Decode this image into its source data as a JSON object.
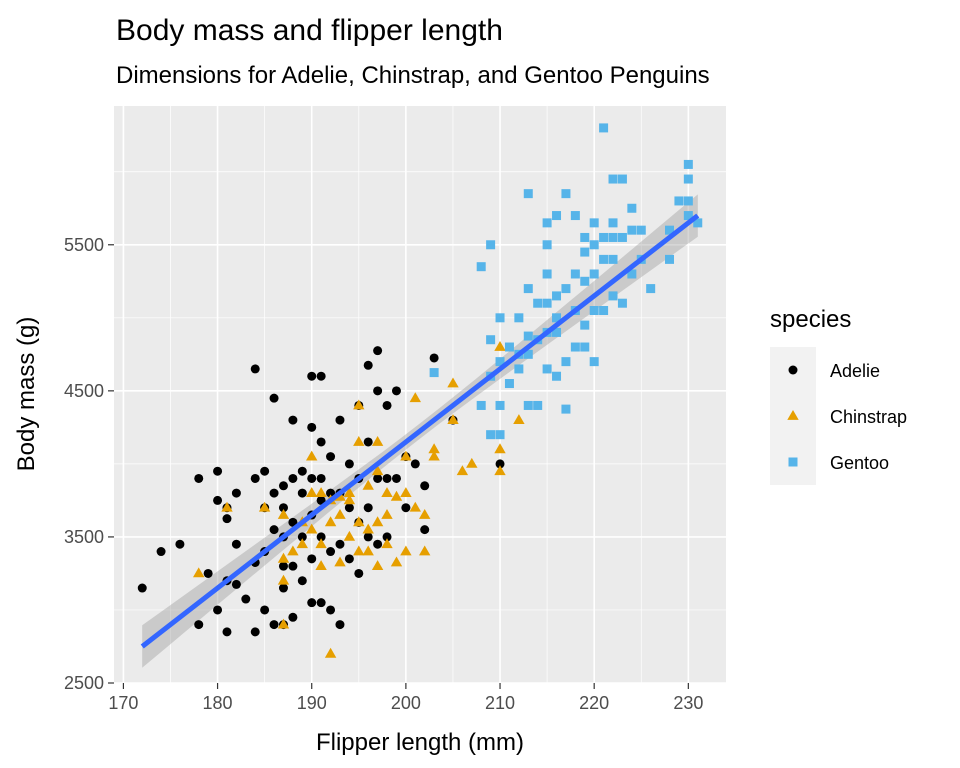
{
  "chart_data": {
    "type": "scatter",
    "title": "Body mass and flipper length",
    "subtitle": "Dimensions for Adelie, Chinstrap, and Gentoo Penguins",
    "xlabel": "Flipper length (mm)",
    "ylabel": "Body mass (g)",
    "xlim": [
      169,
      234
    ],
    "ylim": [
      2500,
      6450
    ],
    "x_ticks": [
      170,
      180,
      190,
      200,
      210,
      220,
      230
    ],
    "y_ticks": [
      2500,
      3500,
      4500,
      5500
    ],
    "grid": true,
    "legend": {
      "title": "species",
      "position": "right"
    },
    "series": [
      {
        "name": "Adelie",
        "color": "#000000",
        "shape": "circle",
        "points": [
          [
            172,
            3150
          ],
          [
            174,
            3400
          ],
          [
            176,
            3450
          ],
          [
            178,
            2900
          ],
          [
            178,
            3900
          ],
          [
            179,
            3250
          ],
          [
            180,
            3000
          ],
          [
            180,
            3950
          ],
          [
            180,
            3750
          ],
          [
            181,
            2850
          ],
          [
            181,
            3200
          ],
          [
            181,
            3625
          ],
          [
            181,
            3700
          ],
          [
            182,
            3175
          ],
          [
            182,
            3450
          ],
          [
            182,
            3800
          ],
          [
            183,
            3075
          ],
          [
            184,
            2850
          ],
          [
            184,
            3325
          ],
          [
            184,
            3900
          ],
          [
            184,
            4650
          ],
          [
            185,
            3000
          ],
          [
            185,
            3400
          ],
          [
            185,
            3700
          ],
          [
            185,
            3950
          ],
          [
            186,
            2900
          ],
          [
            186,
            3550
          ],
          [
            186,
            3800
          ],
          [
            186,
            4450
          ],
          [
            187,
            2900
          ],
          [
            187,
            3150
          ],
          [
            187,
            3300
          ],
          [
            187,
            3500
          ],
          [
            187,
            3700
          ],
          [
            187,
            3850
          ],
          [
            188,
            2950
          ],
          [
            188,
            3300
          ],
          [
            188,
            3600
          ],
          [
            188,
            3900
          ],
          [
            188,
            4300
          ],
          [
            189,
            3200
          ],
          [
            189,
            3500
          ],
          [
            189,
            3800
          ],
          [
            189,
            3950
          ],
          [
            190,
            3050
          ],
          [
            190,
            3350
          ],
          [
            190,
            3650
          ],
          [
            190,
            3900
          ],
          [
            190,
            4250
          ],
          [
            190,
            4600
          ],
          [
            191,
            3050
          ],
          [
            191,
            3500
          ],
          [
            191,
            3750
          ],
          [
            191,
            3900
          ],
          [
            191,
            4150
          ],
          [
            191,
            4600
          ],
          [
            192,
            3000
          ],
          [
            192,
            3400
          ],
          [
            192,
            3800
          ],
          [
            192,
            4050
          ],
          [
            193,
            2900
          ],
          [
            193,
            3450
          ],
          [
            193,
            3800
          ],
          [
            193,
            4300
          ],
          [
            194,
            3350
          ],
          [
            194,
            3700
          ],
          [
            194,
            4000
          ],
          [
            195,
            3250
          ],
          [
            195,
            3600
          ],
          [
            195,
            3900
          ],
          [
            195,
            4400
          ],
          [
            196,
            3500
          ],
          [
            196,
            3700
          ],
          [
            196,
            4150
          ],
          [
            196,
            4675
          ],
          [
            197,
            3450
          ],
          [
            197,
            3900
          ],
          [
            197,
            4500
          ],
          [
            197,
            4775
          ],
          [
            198,
            3500
          ],
          [
            198,
            3900
          ],
          [
            198,
            4400
          ],
          [
            199,
            3900
          ],
          [
            199,
            4500
          ],
          [
            200,
            3700
          ],
          [
            200,
            4050
          ],
          [
            201,
            4000
          ],
          [
            202,
            3550
          ],
          [
            202,
            3850
          ],
          [
            203,
            4725
          ],
          [
            205,
            4300
          ],
          [
            210,
            4000
          ]
        ]
      },
      {
        "name": "Chinstrap",
        "color": "#e69f00",
        "shape": "triangle",
        "points": [
          [
            178,
            3250
          ],
          [
            181,
            3700
          ],
          [
            185,
            3700
          ],
          [
            187,
            2900
          ],
          [
            187,
            3200
          ],
          [
            187,
            3350
          ],
          [
            187,
            3650
          ],
          [
            188,
            3400
          ],
          [
            189,
            3450
          ],
          [
            189,
            3600
          ],
          [
            190,
            3550
          ],
          [
            190,
            3800
          ],
          [
            190,
            4050
          ],
          [
            191,
            3300
          ],
          [
            191,
            3450
          ],
          [
            191,
            3800
          ],
          [
            192,
            2700
          ],
          [
            192,
            3600
          ],
          [
            192,
            3750
          ],
          [
            193,
            3325
          ],
          [
            193,
            3650
          ],
          [
            193,
            3775
          ],
          [
            194,
            3500
          ],
          [
            194,
            3750
          ],
          [
            194,
            3800
          ],
          [
            195,
            3400
          ],
          [
            195,
            3600
          ],
          [
            195,
            4150
          ],
          [
            195,
            4400
          ],
          [
            196,
            3400
          ],
          [
            196,
            3550
          ],
          [
            196,
            3850
          ],
          [
            197,
            3300
          ],
          [
            197,
            3600
          ],
          [
            197,
            3950
          ],
          [
            197,
            4150
          ],
          [
            198,
            3450
          ],
          [
            198,
            3650
          ],
          [
            198,
            3800
          ],
          [
            199,
            3325
          ],
          [
            199,
            3775
          ],
          [
            200,
            3400
          ],
          [
            200,
            3800
          ],
          [
            200,
            4050
          ],
          [
            201,
            3700
          ],
          [
            201,
            4450
          ],
          [
            202,
            3400
          ],
          [
            202,
            3650
          ],
          [
            203,
            4050
          ],
          [
            203,
            4100
          ],
          [
            205,
            4300
          ],
          [
            205,
            4550
          ],
          [
            206,
            3950
          ],
          [
            207,
            4000
          ],
          [
            210,
            3950
          ],
          [
            210,
            4100
          ],
          [
            210,
            4800
          ],
          [
            212,
            4300
          ]
        ]
      },
      {
        "name": "Gentoo",
        "color": "#56b4e9",
        "shape": "square",
        "points": [
          [
            203,
            4625
          ],
          [
            208,
            4400
          ],
          [
            208,
            5350
          ],
          [
            209,
            4200
          ],
          [
            209,
            4600
          ],
          [
            209,
            4850
          ],
          [
            209,
            5500
          ],
          [
            210,
            4200
          ],
          [
            210,
            4400
          ],
          [
            210,
            4700
          ],
          [
            210,
            5000
          ],
          [
            211,
            4550
          ],
          [
            211,
            4800
          ],
          [
            212,
            4650
          ],
          [
            212,
            4750
          ],
          [
            212,
            5000
          ],
          [
            213,
            4400
          ],
          [
            213,
            4750
          ],
          [
            213,
            4875
          ],
          [
            213,
            5200
          ],
          [
            213,
            5850
          ],
          [
            214,
            4400
          ],
          [
            214,
            4850
          ],
          [
            214,
            5100
          ],
          [
            215,
            4650
          ],
          [
            215,
            4900
          ],
          [
            215,
            5100
          ],
          [
            215,
            5300
          ],
          [
            215,
            5500
          ],
          [
            215,
            5650
          ],
          [
            216,
            4600
          ],
          [
            216,
            4900
          ],
          [
            216,
            5000
          ],
          [
            216,
            5150
          ],
          [
            216,
            5700
          ],
          [
            217,
            4375
          ],
          [
            217,
            4700
          ],
          [
            217,
            5200
          ],
          [
            217,
            5850
          ],
          [
            218,
            4800
          ],
          [
            218,
            5050
          ],
          [
            218,
            5300
          ],
          [
            218,
            5700
          ],
          [
            219,
            4800
          ],
          [
            219,
            4950
          ],
          [
            219,
            5250
          ],
          [
            219,
            5450
          ],
          [
            219,
            5550
          ],
          [
            220,
            4700
          ],
          [
            220,
            5050
          ],
          [
            220,
            5300
          ],
          [
            220,
            5500
          ],
          [
            220,
            5650
          ],
          [
            221,
            5050
          ],
          [
            221,
            5400
          ],
          [
            221,
            5550
          ],
          [
            221,
            6300
          ],
          [
            222,
            5150
          ],
          [
            222,
            5400
          ],
          [
            222,
            5550
          ],
          [
            222,
            5650
          ],
          [
            222,
            5950
          ],
          [
            223,
            5100
          ],
          [
            223,
            5550
          ],
          [
            223,
            5950
          ],
          [
            224,
            5300
          ],
          [
            224,
            5600
          ],
          [
            224,
            5750
          ],
          [
            225,
            5400
          ],
          [
            225,
            5600
          ],
          [
            226,
            5200
          ],
          [
            228,
            5400
          ],
          [
            228,
            5600
          ],
          [
            229,
            5800
          ],
          [
            230,
            5700
          ],
          [
            230,
            5800
          ],
          [
            230,
            5950
          ],
          [
            230,
            6050
          ],
          [
            231,
            5650
          ]
        ]
      }
    ],
    "trend_line": {
      "method": "lm",
      "color": "#3366ff",
      "x": [
        172,
        231
      ],
      "y": [
        2750,
        5700
      ],
      "band_halfwidth": [
        120,
        100
      ]
    }
  }
}
